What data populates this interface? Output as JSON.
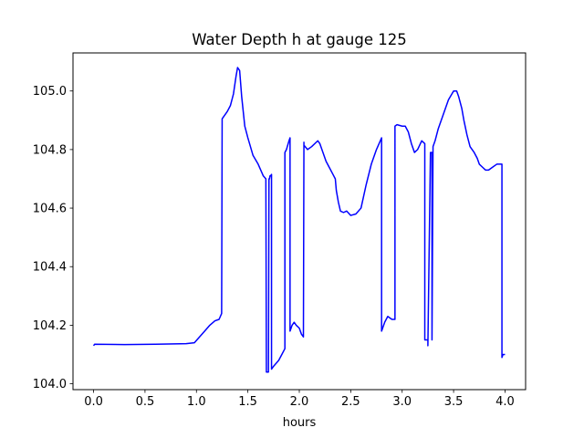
{
  "chart_data": {
    "type": "line",
    "title": "Water Depth h at gauge 125",
    "xlabel": "hours",
    "ylabel": "",
    "xlim": [
      -0.2,
      4.2
    ],
    "ylim": [
      103.98,
      105.13
    ],
    "xticks": [
      0.0,
      0.5,
      1.0,
      1.5,
      2.0,
      2.5,
      3.0,
      3.5,
      4.0
    ],
    "xtick_labels": [
      "0.0",
      "0.5",
      "1.0",
      "1.5",
      "2.0",
      "2.5",
      "3.0",
      "3.5",
      "4.0"
    ],
    "yticks": [
      104.0,
      104.2,
      104.4,
      104.6,
      104.8,
      105.0
    ],
    "ytick_labels": [
      "104.0",
      "104.2",
      "104.4",
      "104.6",
      "104.8",
      "105.0"
    ],
    "grid": false,
    "legend": "none",
    "series": [
      {
        "color": "#0000ff",
        "x": [
          0.0,
          0.01,
          0.3,
          0.6,
          0.9,
          0.98,
          1.03,
          1.08,
          1.13,
          1.18,
          1.22,
          1.245,
          1.25,
          1.26,
          1.3,
          1.33,
          1.36,
          1.385,
          1.4,
          1.42,
          1.44,
          1.47,
          1.5,
          1.55,
          1.6,
          1.65,
          1.675,
          1.68,
          1.7,
          1.705,
          1.71,
          1.715,
          1.72,
          1.73,
          1.73,
          1.75,
          1.8,
          1.83,
          1.86,
          1.86,
          1.875,
          1.9,
          1.91,
          1.91,
          1.93,
          1.95,
          1.97,
          2.0,
          2.02,
          2.04,
          2.045,
          2.045,
          2.08,
          2.12,
          2.18,
          2.2,
          2.23,
          2.26,
          2.29,
          2.32,
          2.35,
          2.36,
          2.38,
          2.4,
          2.43,
          2.46,
          2.5,
          2.55,
          2.6,
          2.65,
          2.7,
          2.75,
          2.8,
          2.8,
          2.83,
          2.86,
          2.9,
          2.93,
          2.93,
          2.95,
          3.0,
          3.03,
          3.06,
          3.09,
          3.12,
          3.15,
          3.19,
          3.22,
          3.22,
          3.25,
          3.25,
          3.275,
          3.29,
          3.29,
          3.3,
          3.32,
          3.35,
          3.4,
          3.45,
          3.5,
          3.53,
          3.55,
          3.58,
          3.6,
          3.63,
          3.66,
          3.7,
          3.73,
          3.75,
          3.78,
          3.81,
          3.84,
          3.88,
          3.92,
          3.95,
          3.97,
          3.97,
          3.98,
          3.99,
          4.0
        ],
        "y": [
          104.13,
          104.135,
          104.134,
          104.135,
          104.137,
          104.14,
          104.16,
          104.18,
          104.2,
          104.215,
          104.22,
          104.24,
          104.905,
          104.91,
          104.93,
          104.95,
          104.99,
          105.05,
          105.08,
          105.07,
          104.98,
          104.88,
          104.84,
          104.78,
          104.75,
          104.71,
          104.7,
          104.04,
          104.04,
          104.7,
          104.7,
          104.71,
          104.71,
          104.715,
          104.05,
          104.06,
          104.08,
          104.1,
          104.12,
          104.79,
          104.8,
          104.83,
          104.84,
          104.18,
          104.2,
          104.21,
          104.2,
          104.19,
          104.17,
          104.16,
          104.825,
          104.815,
          104.8,
          104.81,
          104.83,
          104.82,
          104.79,
          104.76,
          104.74,
          104.72,
          104.7,
          104.66,
          104.62,
          104.59,
          104.585,
          104.59,
          104.575,
          104.58,
          104.6,
          104.68,
          104.75,
          104.8,
          104.84,
          104.18,
          104.21,
          104.23,
          104.22,
          104.22,
          104.88,
          104.885,
          104.88,
          104.88,
          104.86,
          104.82,
          104.79,
          104.8,
          104.83,
          104.82,
          104.15,
          104.15,
          104.13,
          104.79,
          104.79,
          104.15,
          104.81,
          104.83,
          104.87,
          104.92,
          104.97,
          105.0,
          105.0,
          104.98,
          104.94,
          104.9,
          104.85,
          104.81,
          104.79,
          104.77,
          104.75,
          104.74,
          104.73,
          104.73,
          104.74,
          104.75,
          104.75,
          104.75,
          104.09,
          104.1,
          104.1,
          104.1
        ]
      }
    ]
  }
}
